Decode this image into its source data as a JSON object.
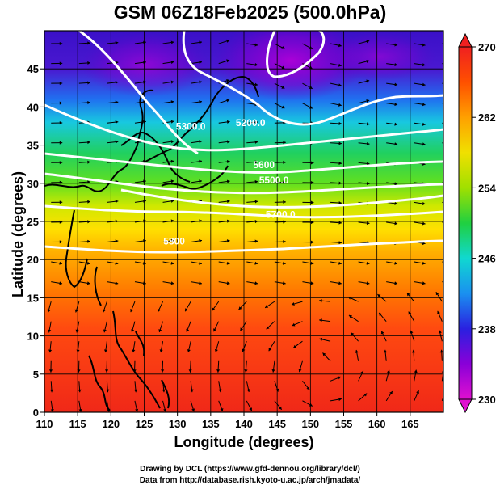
{
  "title": "GSM 06Z18Feb2025 (500.0hPa)",
  "xlabel": "Longitude (degrees)",
  "ylabel": "Latitude  (degrees)",
  "credit_line1": "Drawing by DCL (https://www.gfd-dennou.org/library/dcl/)",
  "credit_line2": "Data from http://database.rish.kyoto-u.ac.jp/arch/jmadata/",
  "chart_data": {
    "type": "heatmap",
    "title": "GSM 06Z18Feb2025 (500.0hPa)",
    "xlabel": "Longitude (degrees)",
    "ylabel": "Latitude  (degrees)",
    "xlim": [
      110,
      170
    ],
    "ylim": [
      0,
      50
    ],
    "x_ticks": [
      110,
      115,
      120,
      125,
      130,
      135,
      140,
      145,
      150,
      155,
      160,
      165
    ],
    "y_ticks": [
      0,
      5,
      10,
      15,
      20,
      25,
      30,
      35,
      40,
      45
    ],
    "colorbar": {
      "range": [
        230,
        270
      ],
      "ticks": [
        230,
        238,
        246,
        254,
        262,
        270
      ],
      "colors": [
        "#e010d0",
        "#8a00d8",
        "#2a20e0",
        "#1a90f0",
        "#10d8d0",
        "#20d040",
        "#a0e000",
        "#f0e000",
        "#ffa000",
        "#ff5000",
        "#f02020"
      ]
    },
    "contour_labels": [
      {
        "text": "5300.0",
        "lon": 132,
        "lat": 37
      },
      {
        "text": "5200.0",
        "lon": 141,
        "lat": 37.5
      },
      {
        "text": "5600",
        "lon": 143,
        "lat": 32
      },
      {
        "text": "5500.0",
        "lon": 144.5,
        "lat": 30
      },
      {
        "text": "5700.0",
        "lon": 145.5,
        "lat": 25.5
      },
      {
        "text": "5800",
        "lon": 129.5,
        "lat": 22
      }
    ]
  }
}
